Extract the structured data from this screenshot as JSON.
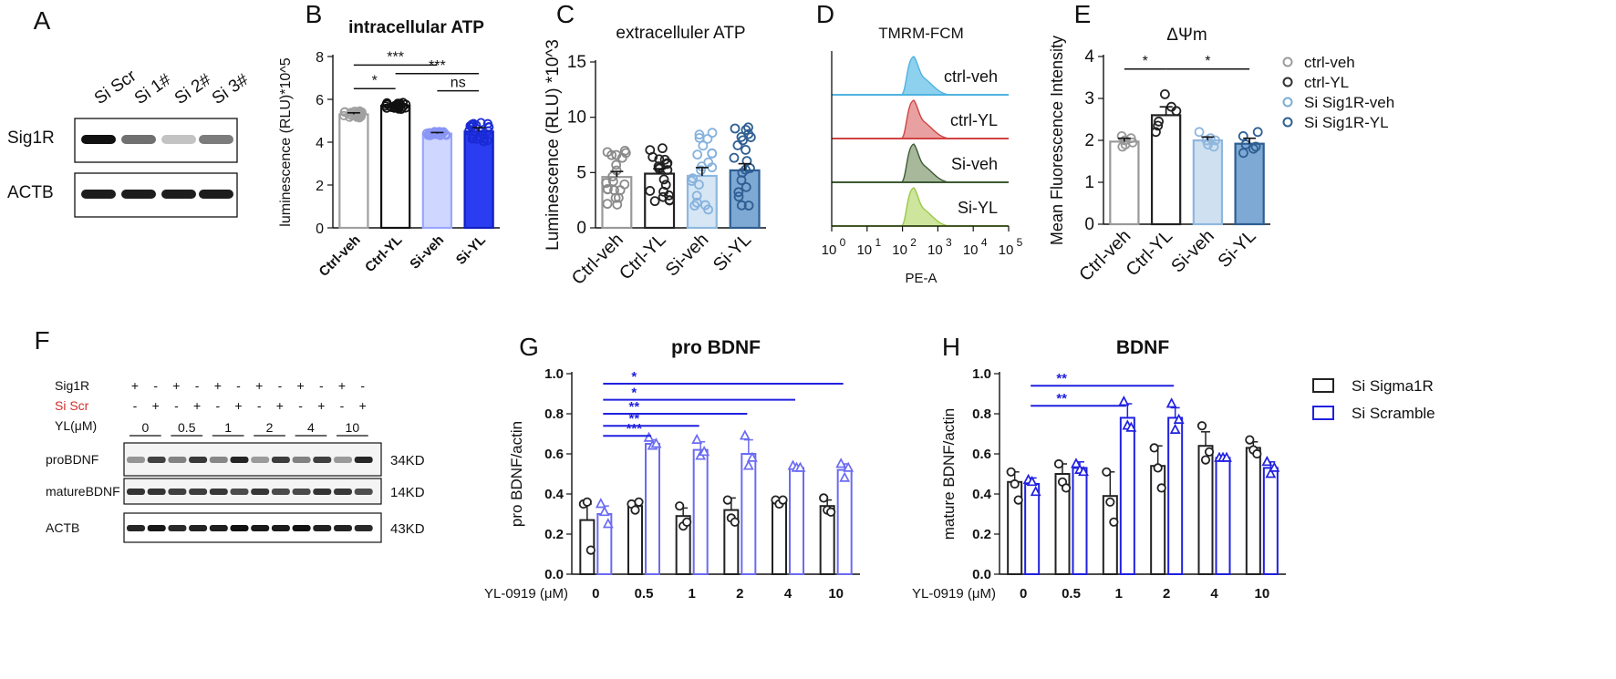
{
  "panels": {
    "A": {
      "letter": "A",
      "lane_labels": [
        "Si Scr",
        "Si 1#",
        "Si 2#",
        "Si 3#"
      ],
      "rows": [
        "Sig1R",
        "ACTB"
      ],
      "sig1r_intensity": [
        1.0,
        0.6,
        0.25,
        0.55
      ]
    },
    "F": {
      "letter": "F",
      "sig1r_label": "Sig1R",
      "siscr_label": "Si Scr",
      "sig1r_signs": [
        "+",
        "-",
        "+",
        "-",
        "+",
        "-",
        "+",
        "-",
        "+",
        "-",
        "+",
        "-"
      ],
      "siscr_signs": [
        "-",
        "+",
        "-",
        "+",
        "-",
        "+",
        "-",
        "+",
        "-",
        "+",
        "-",
        "+"
      ],
      "yl_label": "YL(μM)",
      "yl_doses": [
        "0",
        "0.5",
        "1",
        "2",
        "4",
        "10"
      ],
      "blot_rows": [
        "proBDNF",
        "matureBDNF",
        "ACTB"
      ],
      "sizes": [
        "34KD",
        "14KD",
        "43KD"
      ],
      "siscr_color": "#d12f2f"
    },
    "D": {
      "letter": "D",
      "title": "TMRM-FCM",
      "xlabel": "PE-A",
      "ticks": [
        "0",
        "1",
        "2",
        "3",
        "4",
        "5"
      ],
      "tracks": [
        {
          "label": "ctrl-veh",
          "fill": "#8ed1ee",
          "stroke": "#4fb3e0"
        },
        {
          "label": "ctrl-YL",
          "fill": "#e9a0a0",
          "stroke": "#d04343"
        },
        {
          "label": "Si-veh",
          "fill": "#a7b89b",
          "stroke": "#3e5a34"
        },
        {
          "label": "Si-YL",
          "fill": "#cde59c",
          "stroke": "#9bc94a"
        }
      ]
    },
    "E_legend": {
      "items": [
        {
          "label": "ctrl-veh",
          "color": "#9c9c9c"
        },
        {
          "label": "ctrl-YL",
          "color": "#303030"
        },
        {
          "label": "Si Sig1R-veh",
          "color": "#7aaed6"
        },
        {
          "label": "Si Sig1R-YL",
          "color": "#2e5e92"
        }
      ]
    },
    "GH_legend": {
      "items": [
        {
          "label": "Si Sigma1R",
          "color": "#222222"
        },
        {
          "label": "Si Scramble",
          "color": "#2020e0"
        }
      ]
    }
  },
  "chart_data": [
    {
      "id": "B",
      "letter": "B",
      "type": "bar",
      "title": "intracellular ATP",
      "title_bold": true,
      "ylabel": "luminescence (RLU)*10^5",
      "ylim": [
        0,
        8
      ],
      "yticks": [
        0,
        2,
        4,
        6,
        8
      ],
      "categories": [
        "Ctrl-veh",
        "Ctrl-YL",
        "Si-veh",
        "Si-YL"
      ],
      "values": [
        5.3,
        5.7,
        4.4,
        4.5
      ],
      "errors": [
        0.07,
        0.08,
        0.05,
        0.18
      ],
      "n_points": [
        24,
        24,
        24,
        24
      ],
      "spread": [
        0.35,
        0.35,
        0.2,
        1.1
      ],
      "bar_fill": [
        "#ffffff",
        "#ffffff",
        "#cfd6ff",
        "#2a3df0"
      ],
      "bar_stroke": [
        "#a0a0a0",
        "#111111",
        "#9aa5ff",
        "#1020c0"
      ],
      "dot_color": [
        "#a0a0a0",
        "#111111",
        "#8a96f5",
        "#1a2ad6"
      ],
      "brackets": [
        {
          "from": 0,
          "to": 1,
          "y": 6.5,
          "label": "*"
        },
        {
          "from": 0,
          "to": 2,
          "y": 7.6,
          "label": "***"
        },
        {
          "from": 1,
          "to": 3,
          "y": 7.2,
          "label": "***"
        },
        {
          "from": 2,
          "to": 3,
          "y": 6.4,
          "label": "ns"
        }
      ]
    },
    {
      "id": "C",
      "letter": "C",
      "type": "bar",
      "title": "extracelluler ATP",
      "title_bold": false,
      "ylabel": "Luminescence (RLU) *10^3",
      "ylim": [
        0,
        15
      ],
      "yticks": [
        0,
        5,
        10,
        15
      ],
      "categories": [
        "Ctrl-veh",
        "Ctrl-YL",
        "Si-veh",
        "Si-YL"
      ],
      "values": [
        4.6,
        4.9,
        4.7,
        5.2
      ],
      "errors": [
        0.5,
        0.45,
        0.75,
        0.6
      ],
      "n_points": [
        20,
        20,
        20,
        20
      ],
      "spread": [
        5,
        5,
        8,
        8
      ],
      "bar_fill": [
        "#ffffff",
        "#ffffff",
        "#d6e6f4",
        "#7ea9d4"
      ],
      "bar_stroke": [
        "#999999",
        "#222222",
        "#8fb7de",
        "#2e5e92"
      ],
      "dot_color": [
        "#8a8a8a",
        "#222222",
        "#86b2dd",
        "#2e5e92"
      ],
      "brackets": []
    },
    {
      "id": "E",
      "letter": "E",
      "type": "bar",
      "title": "ΔΨm",
      "title_bold": false,
      "ylabel": "Mean Fluorescence Intensity",
      "ylim": [
        0,
        4
      ],
      "yticks": [
        0,
        1,
        2,
        3,
        4
      ],
      "categories": [
        "Ctrl-veh",
        "Ctrl-YL",
        "Si-veh",
        "Si-YL"
      ],
      "values": [
        1.97,
        2.6,
        2.0,
        1.92
      ],
      "errors": [
        0.08,
        0.2,
        0.08,
        0.13
      ],
      "points": [
        [
          1.85,
          1.95,
          2.0,
          2.05,
          1.9,
          2.1
        ],
        [
          2.2,
          2.45,
          2.7,
          3.1,
          2.35,
          2.8
        ],
        [
          1.9,
          2.0,
          2.2,
          2.05,
          1.85,
          2.0
        ],
        [
          1.7,
          1.9,
          2.1,
          1.8,
          2.2,
          1.85
        ]
      ],
      "bar_fill": [
        "#ffffff",
        "#ffffff",
        "#cfe0f0",
        "#7ea9d4"
      ],
      "bar_stroke": [
        "#999999",
        "#222222",
        "#8fb7de",
        "#2e5e92"
      ],
      "dot_color": [
        "#999999",
        "#222222",
        "#8fb7de",
        "#2e5e92"
      ],
      "brackets": [
        {
          "from": 0,
          "to": 1,
          "y": 3.7,
          "label": "*"
        },
        {
          "from": 1,
          "to": 3,
          "y": 3.7,
          "label": "*"
        }
      ]
    },
    {
      "id": "G",
      "letter": "G",
      "type": "bar",
      "title": "pro BDNF",
      "ylabel": "pro BDNF/actin",
      "xlabel": "YL-0919 (μM)",
      "ylim": [
        0,
        1.0
      ],
      "yticks": [
        "0.0",
        "0.2",
        "0.4",
        "0.6",
        "0.8",
        "1.0"
      ],
      "categories": [
        "0",
        "0.5",
        "1",
        "2",
        "4",
        "10"
      ],
      "series": [
        {
          "name": "Si Sigma1R",
          "values": [
            0.27,
            0.34,
            0.29,
            0.32,
            0.36,
            0.34
          ],
          "errors": [
            0.08,
            0.02,
            0.04,
            0.06,
            0.01,
            0.03
          ],
          "points": [
            [
              0.35,
              0.36,
              0.12
            ],
            [
              0.35,
              0.32,
              0.36
            ],
            [
              0.34,
              0.24,
              0.26
            ],
            [
              0.37,
              0.28,
              0.26
            ],
            [
              0.37,
              0.35,
              0.37
            ],
            [
              0.38,
              0.32,
              0.31
            ]
          ]
        },
        {
          "name": "Si Scramble",
          "values": [
            0.3,
            0.65,
            0.62,
            0.6,
            0.53,
            0.52
          ],
          "errors": [
            0.04,
            0.02,
            0.04,
            0.07,
            0.01,
            0.03
          ],
          "points": [
            [
              0.35,
              0.31,
              0.25
            ],
            [
              0.68,
              0.64,
              0.65
            ],
            [
              0.67,
              0.59,
              0.61
            ],
            [
              0.69,
              0.54,
              0.58
            ],
            [
              0.54,
              0.53,
              0.53
            ],
            [
              0.55,
              0.48,
              0.53
            ]
          ]
        }
      ],
      "series_color": [
        "#222222",
        "#6b6bf2"
      ],
      "bracket_color": "#2020e0",
      "brackets": [
        {
          "from": 0,
          "to": 5,
          "y": 0.95,
          "label": "*"
        },
        {
          "from": 0,
          "to": 4,
          "y": 0.87,
          "label": "*"
        },
        {
          "from": 0,
          "to": 3,
          "y": 0.8,
          "label": "**"
        },
        {
          "from": 0,
          "to": 2,
          "y": 0.74,
          "label": "**"
        },
        {
          "from": 0,
          "to": 1,
          "y": 0.69,
          "label": "***"
        }
      ]
    },
    {
      "id": "H",
      "letter": "H",
      "type": "bar",
      "title": "BDNF",
      "ylabel": "mature BDNF/actin",
      "xlabel": "YL-0919 (μM)",
      "ylim": [
        0,
        1.0
      ],
      "yticks": [
        "0.0",
        "0.2",
        "0.4",
        "0.6",
        "0.8",
        "1.0"
      ],
      "categories": [
        "0",
        "0.5",
        "1",
        "2",
        "4",
        "10"
      ],
      "series": [
        {
          "name": "Si Sigma1R",
          "values": [
            0.46,
            0.5,
            0.39,
            0.54,
            0.64,
            0.63
          ],
          "errors": [
            0.05,
            0.05,
            0.12,
            0.1,
            0.07,
            0.03
          ],
          "points": [
            [
              0.51,
              0.45,
              0.37
            ],
            [
              0.55,
              0.46,
              0.43
            ],
            [
              0.51,
              0.36,
              0.26
            ],
            [
              0.63,
              0.53,
              0.43
            ],
            [
              0.74,
              0.57,
              0.61
            ],
            [
              0.67,
              0.62,
              0.6
            ]
          ]
        },
        {
          "name": "Si Scramble",
          "values": [
            0.45,
            0.53,
            0.78,
            0.78,
            0.58,
            0.53
          ],
          "errors": [
            0.03,
            0.03,
            0.07,
            0.05,
            0.01,
            0.03
          ],
          "points": [
            [
              0.47,
              0.46,
              0.41
            ],
            [
              0.55,
              0.52,
              0.51
            ],
            [
              0.86,
              0.74,
              0.73
            ],
            [
              0.85,
              0.72,
              0.77
            ],
            [
              0.58,
              0.58,
              0.58
            ],
            [
              0.56,
              0.5,
              0.53
            ]
          ]
        }
      ],
      "series_color": [
        "#222222",
        "#2020e0"
      ],
      "bracket_color": "#2020e0",
      "brackets": [
        {
          "from": 0,
          "to": 3,
          "y": 0.94,
          "label": "**"
        },
        {
          "from": 0,
          "to": 2,
          "y": 0.84,
          "label": "**"
        }
      ]
    }
  ]
}
